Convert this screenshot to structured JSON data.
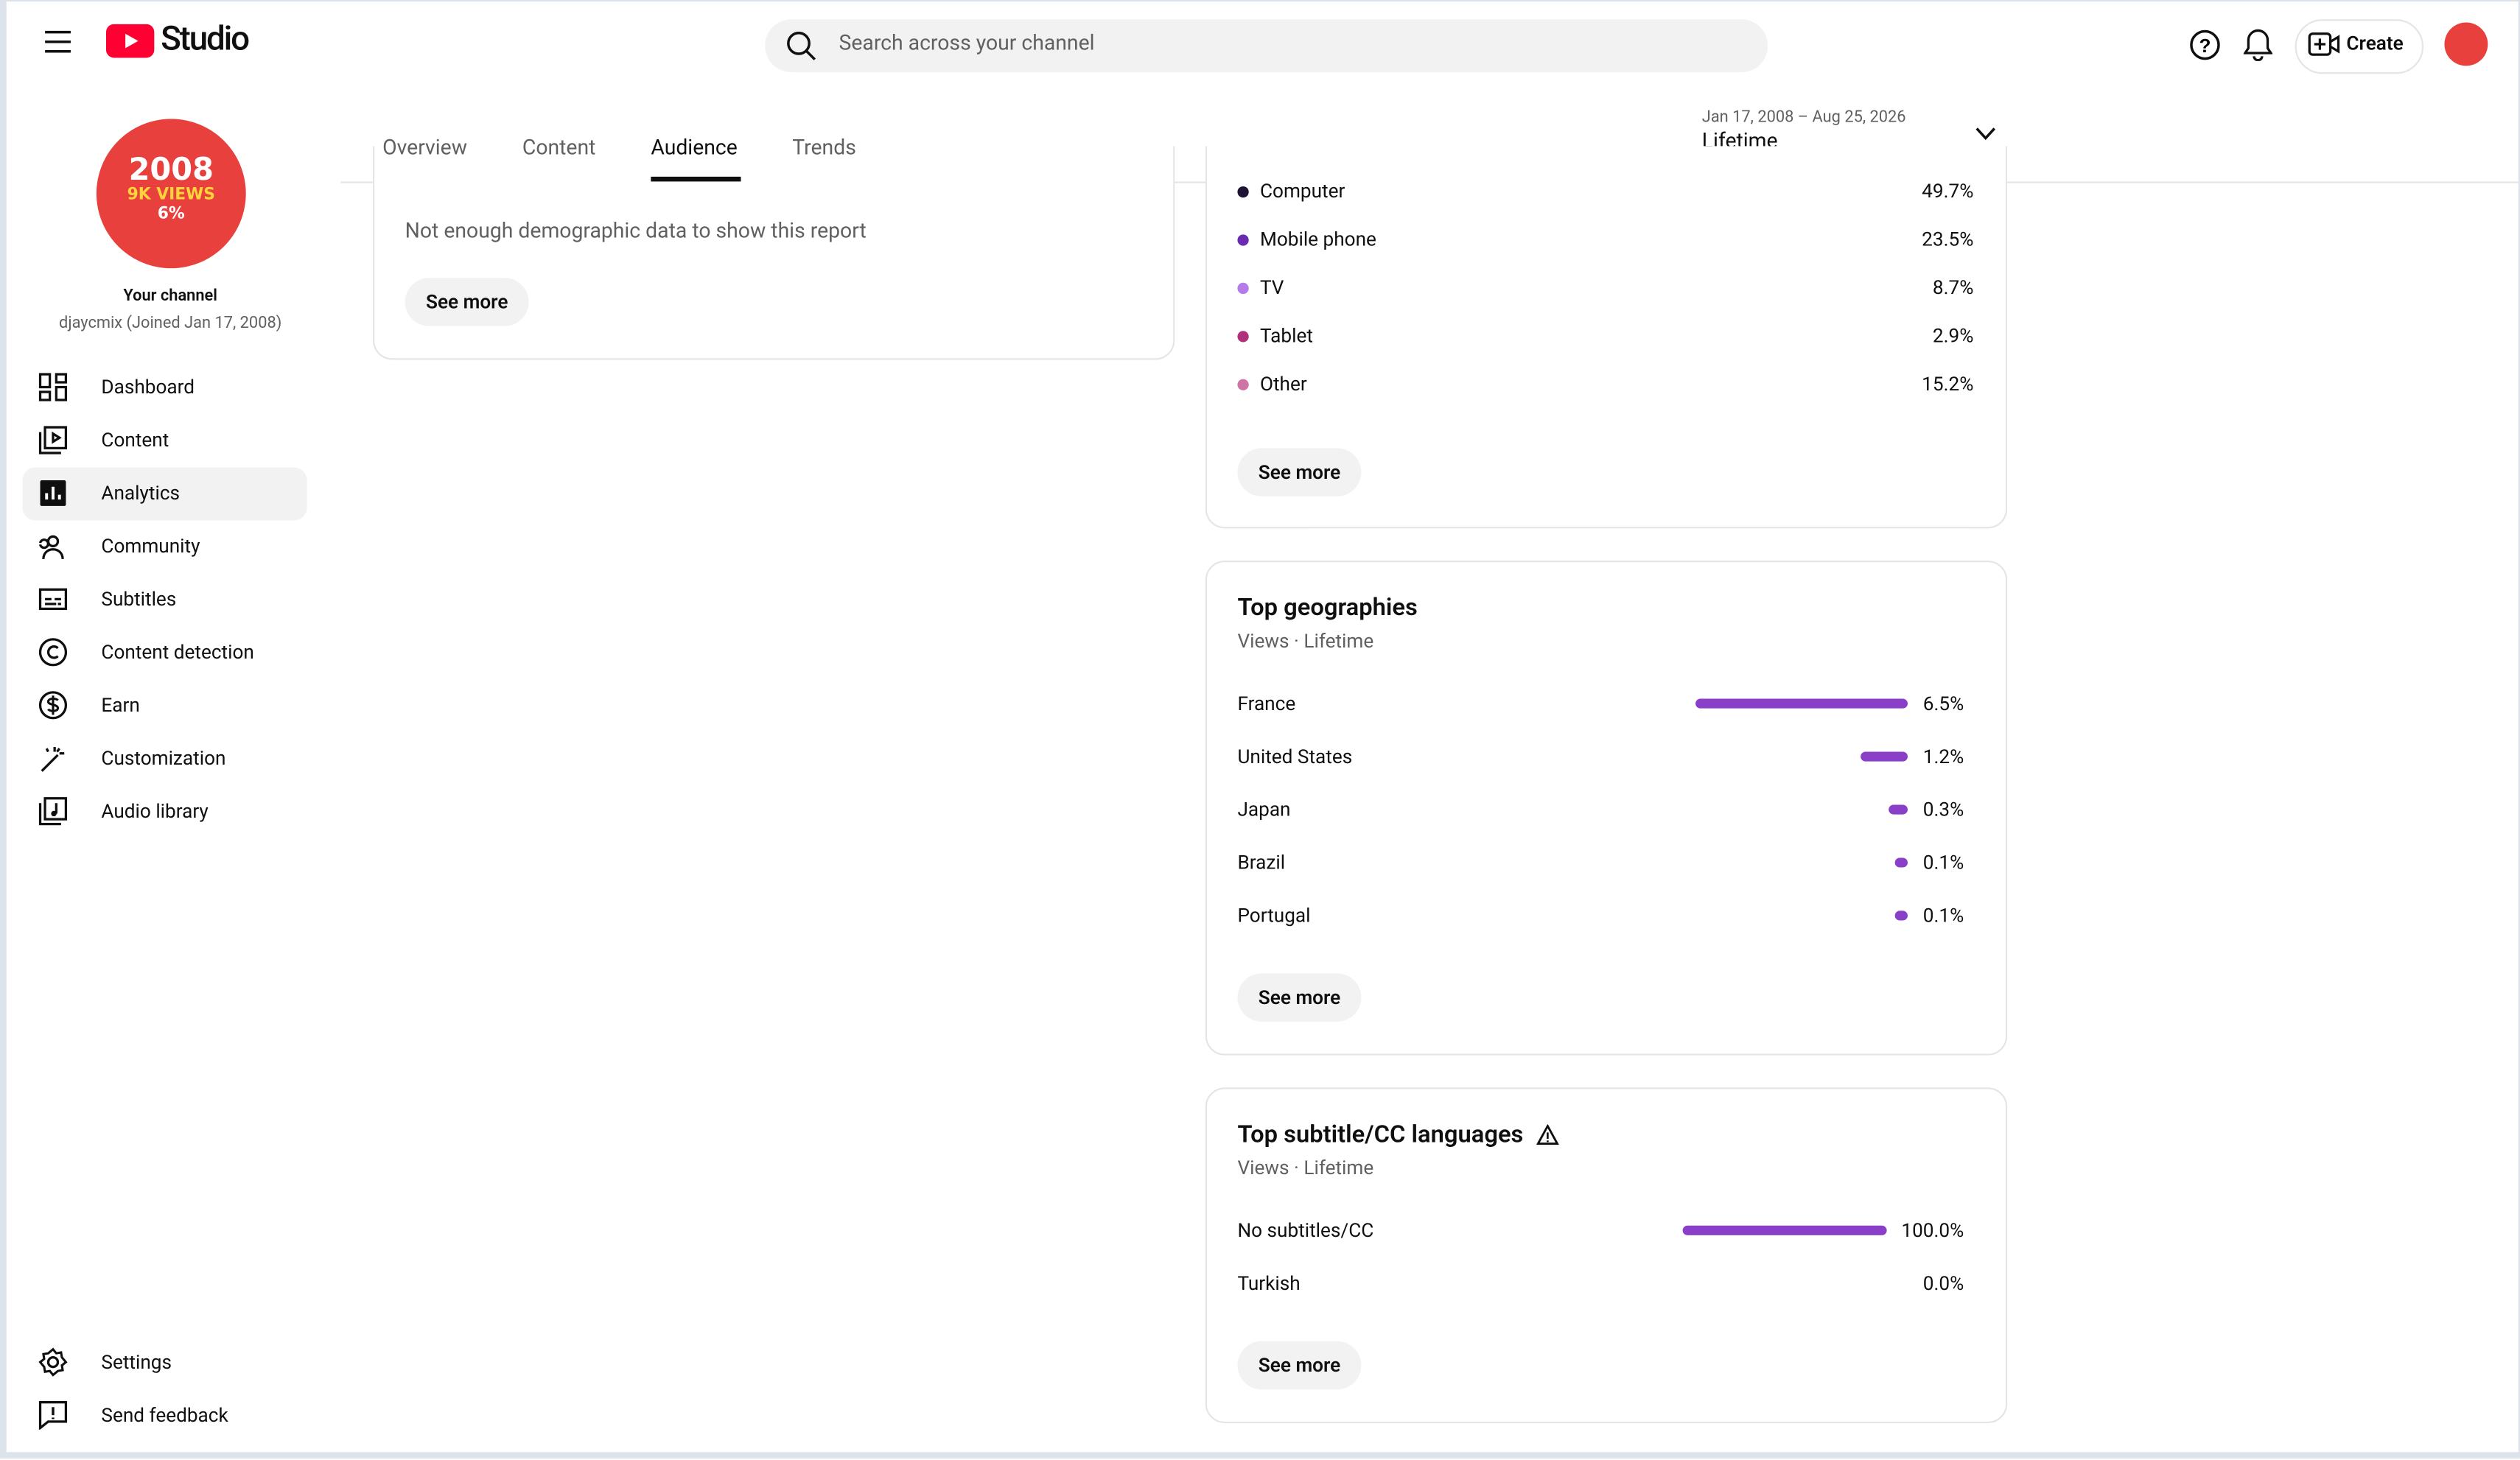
{
  "header": {
    "logo": "Studio",
    "search": "Search across your channel",
    "create": "Create"
  },
  "channel": {
    "avatar": [
      "2008",
      "9K VIEWS",
      "6%"
    ],
    "title": "Your channel",
    "subtitle": "djaycmix (Joined Jan 17, 2008)"
  },
  "nav": [
    "Dashboard",
    "Content",
    "Analytics",
    "Community",
    "Subtitles",
    "Content detection",
    "Earn",
    "Customization",
    "Audio library"
  ],
  "nav_bottom": [
    "Settings",
    "Send feedback"
  ],
  "tabs": [
    "Overview",
    "Content",
    "Audience",
    "Trends"
  ],
  "date_range": {
    "range": "Jan 17, 2008 – Aug 25, 2026",
    "label": "Lifetime"
  },
  "demographics": {
    "message": "Not enough demographic data to show this report",
    "button": "See more"
  },
  "devices": {
    "items": [
      {
        "name": "Computer",
        "label": "49.7%"
      },
      {
        "name": "Mobile phone",
        "label": "23.5%"
      },
      {
        "name": "TV",
        "label": "8.7%"
      },
      {
        "name": "Tablet",
        "label": "2.9%"
      },
      {
        "name": "Other",
        "label": "15.2%"
      }
    ],
    "button": "See more"
  },
  "geographies": {
    "title": "Top geographies",
    "subtitle": "Views · Lifetime",
    "rows": [
      {
        "name": "France",
        "value": 6.5,
        "label": "6.5%"
      },
      {
        "name": "United States",
        "value": 1.2,
        "label": "1.2%"
      },
      {
        "name": "Japan",
        "value": 0.3,
        "label": "0.3%"
      },
      {
        "name": "Brazil",
        "value": 0.1,
        "label": "0.1%"
      },
      {
        "name": "Portugal",
        "value": 0.1,
        "label": "0.1%"
      }
    ],
    "button": "See more"
  },
  "subtitles": {
    "title": "Top subtitle/CC languages",
    "subtitle": "Views · Lifetime",
    "rows": [
      {
        "name": "No subtitles/CC",
        "value": 100.0,
        "label": "100.0%"
      },
      {
        "name": "Turkish",
        "value": 0.0,
        "label": "0.0%"
      }
    ],
    "button": "See more"
  }
}
